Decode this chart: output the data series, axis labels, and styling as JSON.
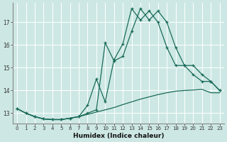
{
  "xlabel": "Humidex (Indice chaleur)",
  "background_color": "#cde8e4",
  "grid_color": "#ffffff",
  "line_color": "#1a6b5a",
  "x_min": -0.5,
  "x_max": 23.5,
  "y_min": 12.55,
  "y_max": 17.85,
  "yticks": [
    13,
    14,
    15,
    16,
    17
  ],
  "xticks": [
    0,
    1,
    2,
    3,
    4,
    5,
    6,
    7,
    8,
    9,
    10,
    11,
    12,
    13,
    14,
    15,
    16,
    17,
    18,
    19,
    20,
    21,
    22,
    23
  ],
  "line1_x": [
    0,
    1,
    2,
    3,
    4,
    5,
    6,
    7,
    8,
    9,
    10,
    11,
    12,
    13,
    14,
    15,
    16,
    17,
    18,
    19,
    20,
    21,
    22,
    23
  ],
  "line1_y": [
    13.2,
    13.0,
    12.85,
    12.75,
    12.72,
    12.72,
    12.78,
    12.85,
    12.95,
    13.05,
    13.15,
    13.25,
    13.38,
    13.5,
    13.62,
    13.72,
    13.82,
    13.9,
    13.97,
    14.0,
    14.02,
    14.05,
    13.9,
    13.9
  ],
  "line2_x": [
    0,
    1,
    2,
    3,
    4,
    5,
    6,
    7,
    8,
    9,
    10,
    11,
    12,
    13,
    14,
    15,
    16,
    17,
    18,
    19,
    20,
    21,
    22,
    23
  ],
  "line2_y": [
    13.2,
    13.0,
    12.85,
    12.75,
    12.72,
    12.72,
    12.78,
    12.85,
    13.0,
    13.15,
    16.1,
    15.3,
    15.5,
    16.6,
    17.6,
    17.1,
    17.5,
    17.0,
    15.9,
    15.1,
    15.1,
    14.7,
    14.4,
    14.0
  ],
  "line3_x": [
    0,
    1,
    2,
    3,
    4,
    5,
    6,
    7,
    8,
    9,
    10,
    11,
    12,
    13,
    14,
    15,
    16,
    17,
    18,
    19,
    20,
    21,
    22,
    23
  ],
  "line3_y": [
    13.2,
    13.0,
    12.85,
    12.75,
    12.72,
    12.72,
    12.78,
    12.85,
    13.35,
    14.5,
    13.5,
    15.35,
    16.05,
    17.6,
    17.1,
    17.5,
    17.0,
    15.9,
    15.1,
    15.1,
    14.7,
    14.4,
    14.4,
    14.0
  ]
}
